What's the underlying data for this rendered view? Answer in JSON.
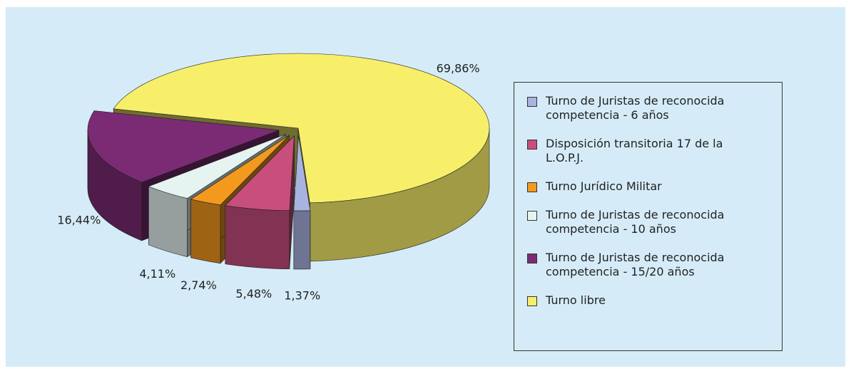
{
  "chart_data": {
    "type": "pie3d",
    "categories": [
      "Turno de Juristas de reconocida competencia - 6 años",
      "Disposición transitoria 17 de la L.O.P.J.",
      "Turno Jurídico Militar",
      "Turno de Juristas de reconocida competencia - 10 años",
      "Turno de Juristas de reconocida competencia - 15/20 años",
      "Turno libre"
    ],
    "values": [
      1.37,
      5.48,
      2.74,
      4.11,
      16.44,
      69.86
    ],
    "value_labels": [
      "1,37%",
      "5,48%",
      "2,74%",
      "4,11%",
      "16,44%",
      "69,86%"
    ],
    "colors": [
      "#a9b3e0",
      "#c84f7c",
      "#f39a1e",
      "#e6f4f1",
      "#7b2b73",
      "#f7ef6a"
    ],
    "legend": "right"
  }
}
